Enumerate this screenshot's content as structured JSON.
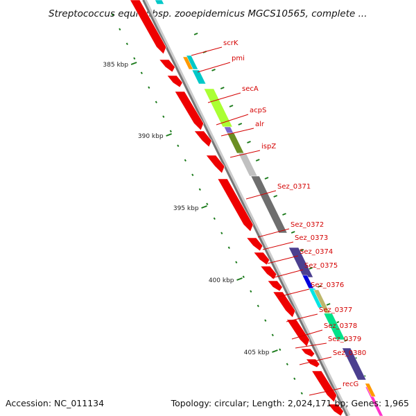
{
  "title": "Streptococcus equi subsp. zooepidemicus MGCS10565, complete ...",
  "accession": "Accession: NC_011134",
  "topology": "Topology: circular; Length: 2,024,171 bp; Genes: 1,965",
  "colors": {
    "backbone_light": "#cccccc",
    "backbone_dark": "#777777",
    "tick_major": "#1a7a1a",
    "tick_minor": "#1a7a1a",
    "label_red": "#d40000",
    "leader_red": "#d40000",
    "gene_red": "#ee0000"
  },
  "ticks": [
    {
      "label": "385 kbp"
    },
    {
      "label": "390 kbp"
    },
    {
      "label": "395 kbp"
    },
    {
      "label": "400 kbp"
    },
    {
      "label": "405 kbp"
    }
  ],
  "inner_genes": [
    {
      "color": "#ee0000"
    },
    {
      "color": "#ee0000"
    },
    {
      "color": "#ee0000"
    },
    {
      "color": "#ee0000"
    },
    {
      "color": "#ee0000"
    },
    {
      "color": "#ee0000"
    },
    {
      "color": "#ee0000"
    },
    {
      "color": "#ee0000"
    },
    {
      "color": "#ee0000"
    },
    {
      "color": "#ee0000"
    },
    {
      "color": "#ee0000"
    },
    {
      "color": "#ee0000"
    },
    {
      "color": "#ee0000"
    },
    {
      "color": "#ee0000"
    },
    {
      "color": "#ee0000"
    },
    {
      "color": "#ee0000"
    },
    {
      "color": "#ee0000"
    }
  ],
  "outer_genes": [
    {
      "color": "#00c8c8"
    },
    {
      "color": "#ff9900"
    },
    {
      "color": "#00c8c8"
    },
    {
      "color": "#00c8c8"
    },
    {
      "color": "#aaff33"
    },
    {
      "color": "#7a66cc"
    },
    {
      "color": "#6b8e23"
    },
    {
      "color": "#c0c0c0"
    },
    {
      "color": "#6e6e6e"
    },
    {
      "color": "#4b3f8f"
    },
    {
      "color": "#0000dd"
    },
    {
      "color": "#00e5e5"
    },
    {
      "color": "#bdb76b"
    },
    {
      "color": "#00e28a"
    },
    {
      "color": "#4b3f8f"
    },
    {
      "color": "#ff33cc"
    },
    {
      "color": "#ff9900"
    }
  ],
  "genes": [
    {
      "label": "scrK"
    },
    {
      "label": "pmi"
    },
    {
      "label": "secA"
    },
    {
      "label": "acpS"
    },
    {
      "label": "alr"
    },
    {
      "label": "ispZ"
    },
    {
      "label": "Sez_0371"
    },
    {
      "label": "Sez_0372"
    },
    {
      "label": "Sez_0373"
    },
    {
      "label": "Sez_0374"
    },
    {
      "label": "Sez_0375"
    },
    {
      "label": "Sez_0376"
    },
    {
      "label": "Sez_0377"
    },
    {
      "label": "Sez_0378"
    },
    {
      "label": "Sez_0379"
    },
    {
      "label": "Sez_0380"
    },
    {
      "label": "recG"
    }
  ]
}
